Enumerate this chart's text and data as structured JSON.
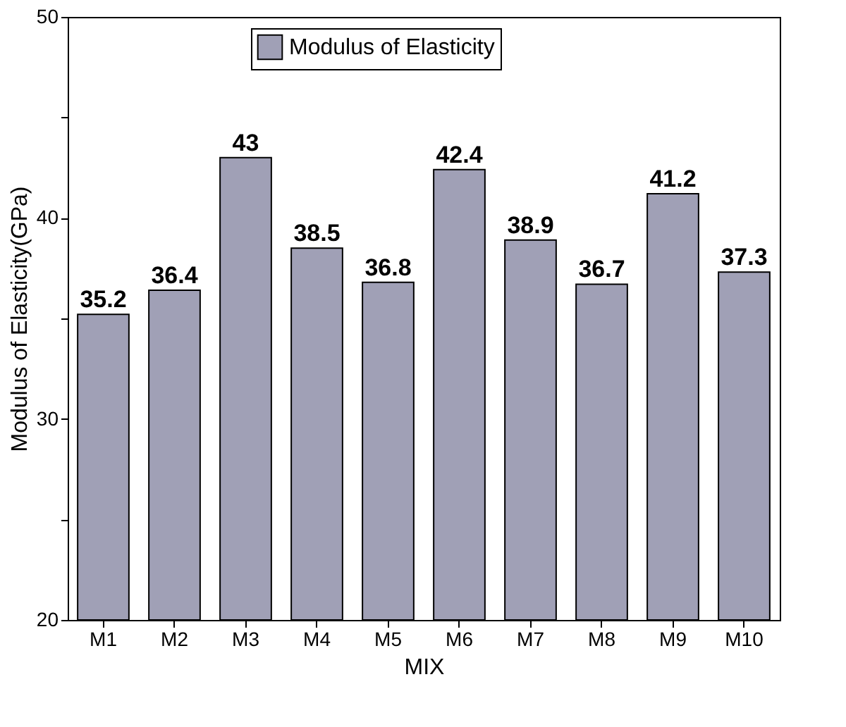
{
  "chart_data": {
    "type": "bar",
    "xlabel": "MIX",
    "ylabel": "Modulus of Elasticity(GPa)",
    "categories": [
      "M1",
      "M2",
      "M3",
      "M4",
      "M5",
      "M6",
      "M7",
      "M8",
      "M9",
      "M10"
    ],
    "series": [
      {
        "name": "Modulus of Elasticity",
        "color": "#a0a0b6",
        "values": [
          35.2,
          36.4,
          43,
          38.5,
          36.8,
          42.4,
          38.9,
          36.7,
          41.2,
          37.3
        ]
      }
    ],
    "ylim": [
      20,
      50
    ],
    "yticks": [
      20,
      {
        "value": 25,
        "label": null
      },
      30,
      {
        "value": 35,
        "label": null
      },
      40,
      {
        "value": 45,
        "label": null
      },
      50
    ],
    "data_labels": true,
    "grid": false,
    "legend": "top"
  }
}
